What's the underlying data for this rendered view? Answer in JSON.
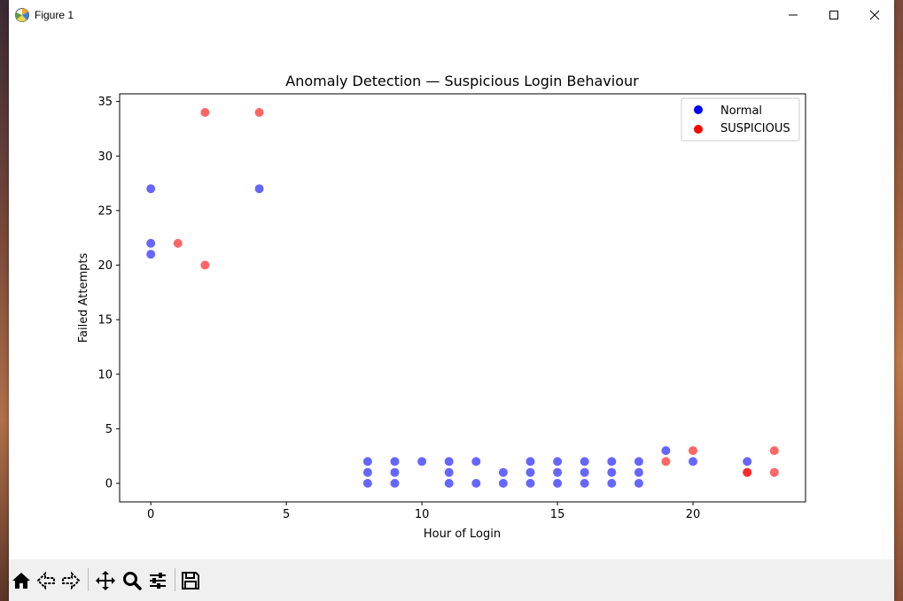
{
  "window": {
    "title": "Figure 1",
    "icons": [
      "matplotlib-icon",
      "minimize-icon",
      "maximize-icon",
      "close-icon"
    ]
  },
  "toolbar": {
    "buttons": [
      "home-icon",
      "back-icon",
      "forward-icon",
      "pan-icon",
      "zoom-icon",
      "configure-icon",
      "save-icon"
    ]
  },
  "chart_data": {
    "type": "scatter",
    "title": "Anomaly Detection — Suspicious Login Behaviour",
    "xlabel": "Hour of Login",
    "ylabel": "Failed Attempts",
    "xlim": [
      -1.15,
      24.15
    ],
    "ylim": [
      -1.7,
      35.7
    ],
    "xticks": [
      0,
      5,
      10,
      15,
      20
    ],
    "yticks": [
      0,
      5,
      10,
      15,
      20,
      25,
      30,
      35
    ],
    "grid": false,
    "legend": "top-right",
    "series": [
      {
        "name": "Normal",
        "color": "#0000ff",
        "points": [
          [
            0,
            27
          ],
          [
            0,
            22
          ],
          [
            0,
            21
          ],
          [
            4,
            27
          ],
          [
            8,
            2
          ],
          [
            8,
            1
          ],
          [
            8,
            0
          ],
          [
            9,
            2
          ],
          [
            9,
            1
          ],
          [
            9,
            0
          ],
          [
            10,
            2
          ],
          [
            11,
            2
          ],
          [
            11,
            1
          ],
          [
            11,
            0
          ],
          [
            12,
            2
          ],
          [
            12,
            0
          ],
          [
            13,
            1
          ],
          [
            13,
            0
          ],
          [
            14,
            2
          ],
          [
            14,
            1
          ],
          [
            14,
            0
          ],
          [
            15,
            2
          ],
          [
            15,
            1
          ],
          [
            15,
            0
          ],
          [
            16,
            2
          ],
          [
            16,
            1
          ],
          [
            16,
            0
          ],
          [
            17,
            2
          ],
          [
            17,
            1
          ],
          [
            17,
            0
          ],
          [
            18,
            2
          ],
          [
            18,
            1
          ],
          [
            18,
            0
          ],
          [
            19,
            3
          ],
          [
            20,
            2
          ],
          [
            22,
            2
          ]
        ]
      },
      {
        "name": "SUSPICIOUS",
        "color": "#ff0000",
        "points": [
          [
            2,
            34
          ],
          [
            4,
            34
          ],
          [
            1,
            22
          ],
          [
            2,
            20
          ],
          [
            19,
            2
          ],
          [
            20,
            3
          ],
          [
            22,
            1
          ],
          [
            22,
            1
          ],
          [
            23,
            3
          ],
          [
            23,
            1
          ]
        ]
      }
    ]
  }
}
